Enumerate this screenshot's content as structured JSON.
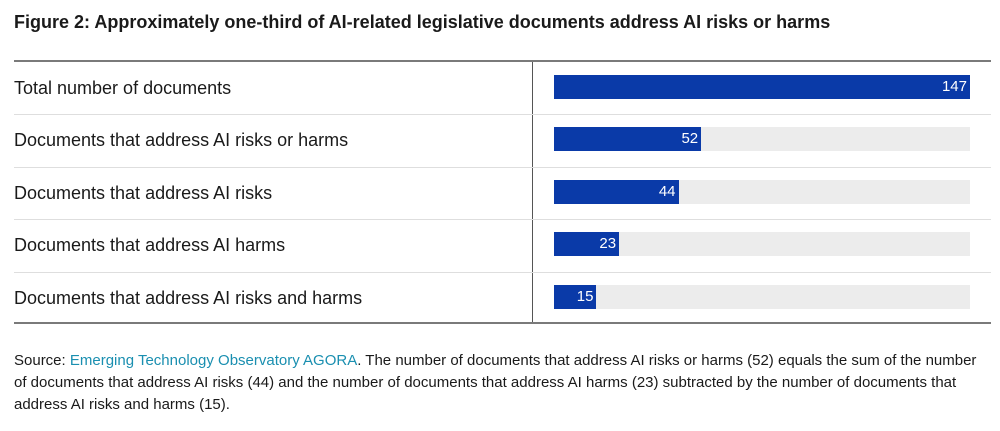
{
  "figure": {
    "title": "Figure 2: Approximately one-third of AI-related legislative documents address AI risks or harms"
  },
  "source": {
    "prefix": "Source: ",
    "link_text": "Emerging Technology Observatory AGORA",
    "text": ". The number of documents that address AI risks or harms (52) equals the sum of the number of documents that address AI risks (44) and the number of documents that address AI harms (23) subtracted by the number of documents that address AI risks and harms (15)."
  },
  "colors": {
    "bar": "#0a3aa8",
    "track": "#ececec",
    "link": "#1a8fb0"
  },
  "chart_data": {
    "type": "bar",
    "orientation": "horizontal",
    "title": "Figure 2: Approximately one-third of AI-related legislative documents address AI risks or harms",
    "categories": [
      "Total number of documents",
      "Documents that address AI risks or harms",
      "Documents that address AI risks",
      "Documents that address AI harms",
      "Documents that address AI risks and harms"
    ],
    "values": [
      147,
      52,
      44,
      23,
      15
    ],
    "value_labels": [
      "147",
      "52",
      "44",
      "23",
      "15"
    ],
    "xlim": [
      0,
      147
    ],
    "grid": false,
    "legend": "none"
  }
}
